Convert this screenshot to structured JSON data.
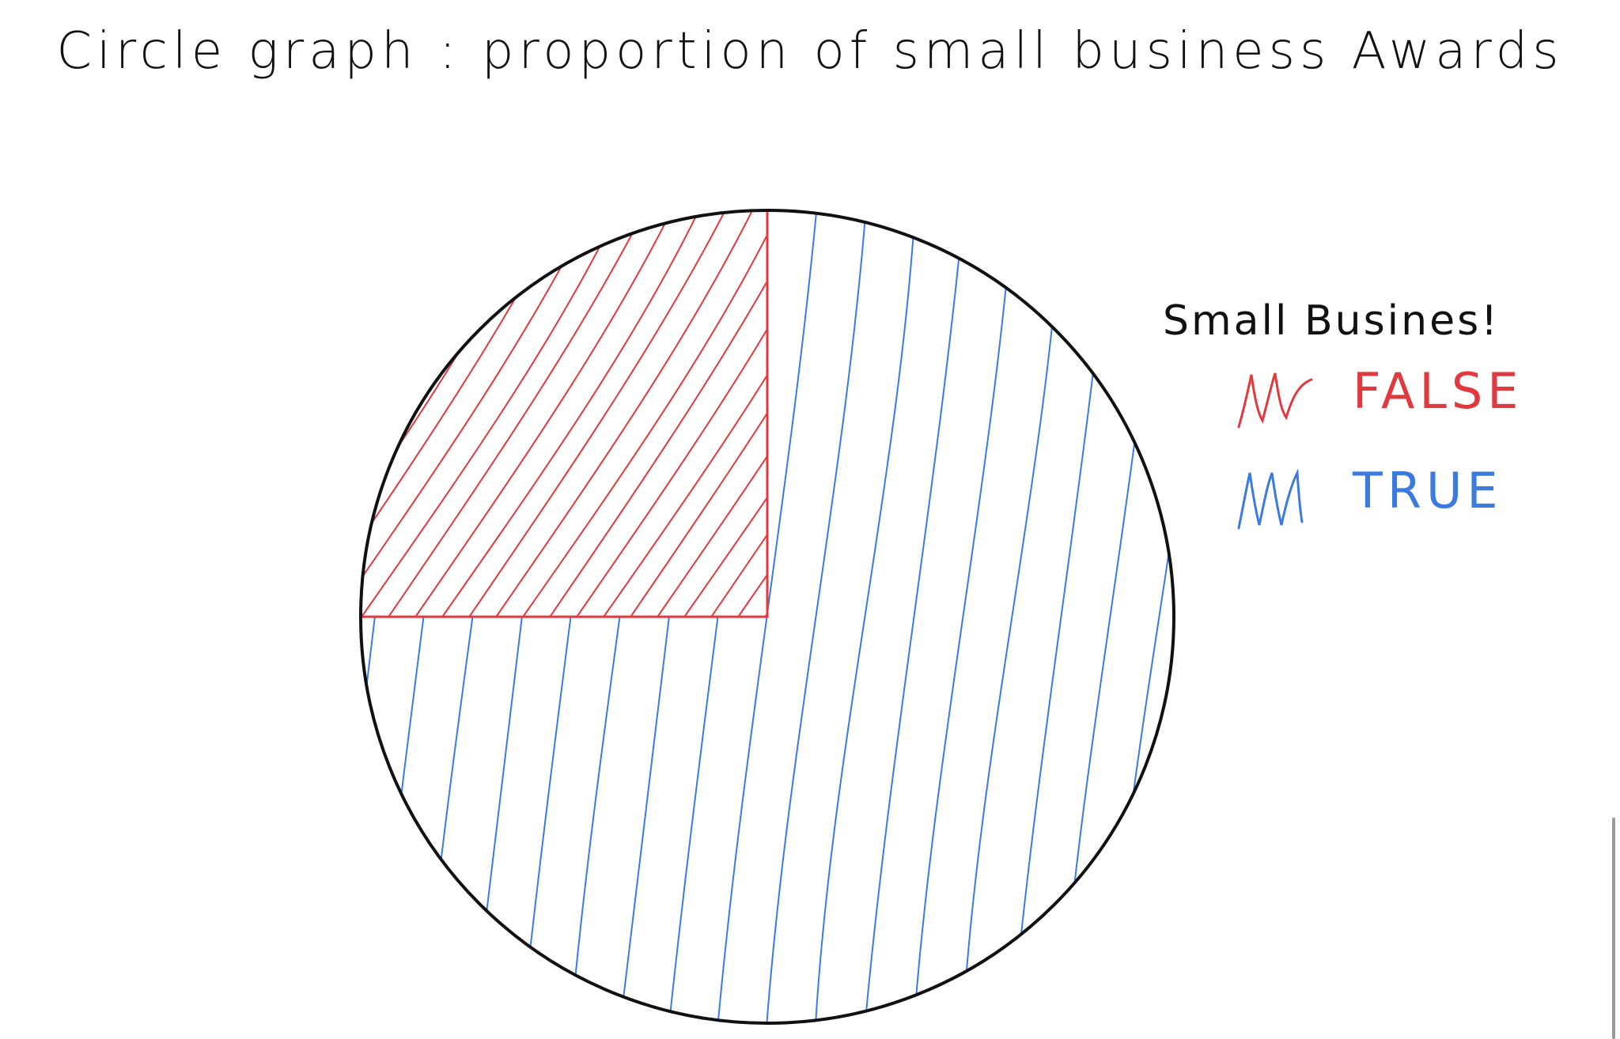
{
  "chart_data": {
    "type": "pie",
    "title": "Circle graph : proportion of small business Awards",
    "legend_title": "Small Busines!",
    "legend_placement": "right",
    "categories": [
      "FALSE",
      "TRUE"
    ],
    "values": [
      25,
      75
    ],
    "colors": {
      "FALSE": "#e0393e",
      "TRUE": "#3b7be0"
    },
    "grid": false
  },
  "scrollbar": {
    "orientation": "vertical"
  }
}
